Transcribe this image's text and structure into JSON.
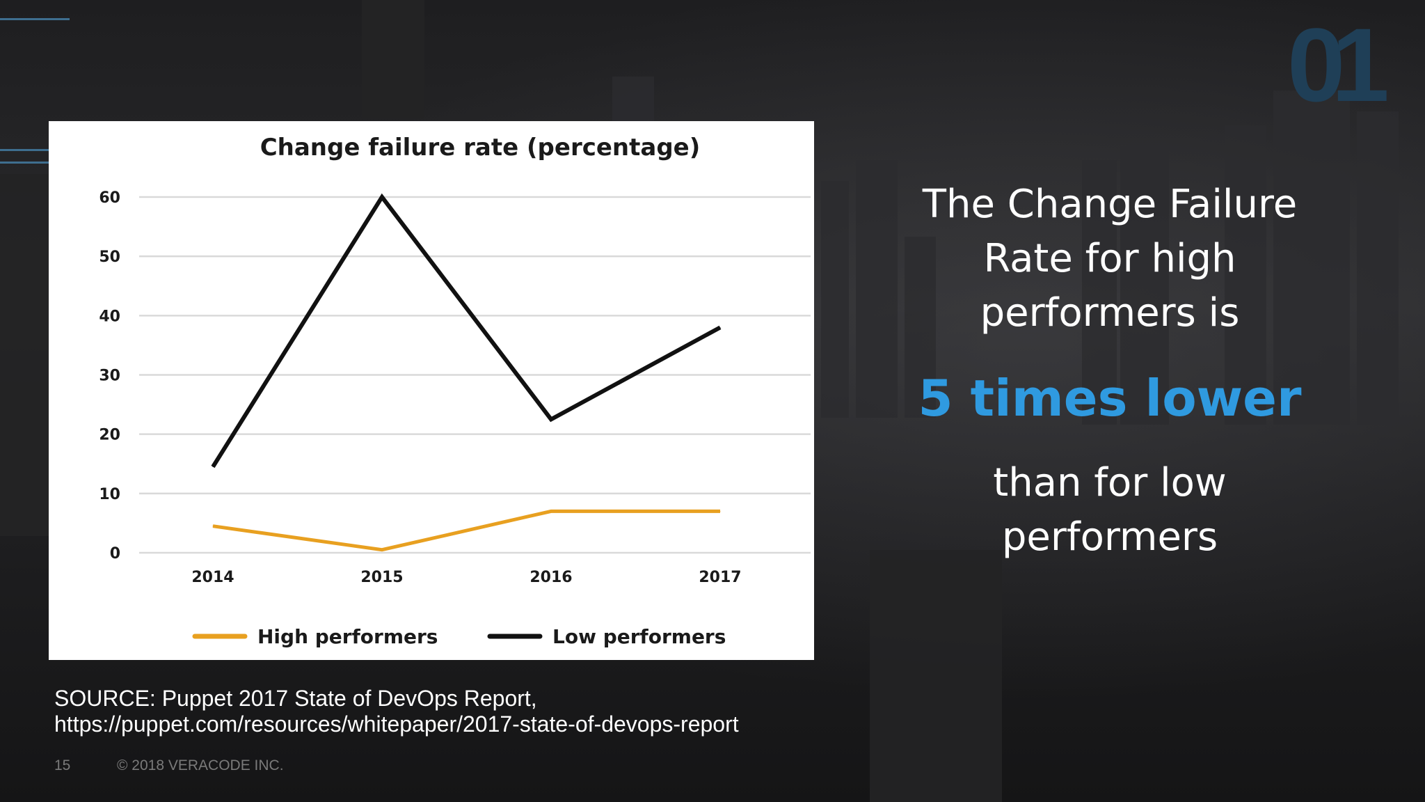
{
  "slide": {
    "logo_text": "01",
    "headline_part1": [
      "The Change Failure",
      "Rate for high",
      "performers is"
    ],
    "headline_emphasis": "5 times lower",
    "headline_part2": [
      "than for low",
      "performers"
    ],
    "source_line1": "SOURCE: Puppet  2017 State of DevOps Report,",
    "source_line2": "https://puppet.com/resources/whitepaper/2017-state-of-devops-report",
    "page_number": "15",
    "copyright": "© 2018 VERACODE INC.",
    "colors": {
      "emphasis": "#2f9ae0",
      "high_series": "#e8a020",
      "low_series": "#111111"
    }
  },
  "chart_data": {
    "type": "line",
    "title": "Change failure rate (percentage)",
    "categories": [
      "2014",
      "2015",
      "2016",
      "2017"
    ],
    "y_ticks": [
      0,
      10,
      20,
      30,
      40,
      50,
      60
    ],
    "ylim": [
      0,
      60
    ],
    "grid": true,
    "legend_position": "bottom",
    "series": [
      {
        "name": "High performers",
        "values": [
          4.5,
          0.5,
          7,
          7
        ],
        "color": "#e8a020"
      },
      {
        "name": "Low performers",
        "values": [
          14.5,
          60,
          22.5,
          38
        ],
        "color": "#111111"
      }
    ]
  }
}
